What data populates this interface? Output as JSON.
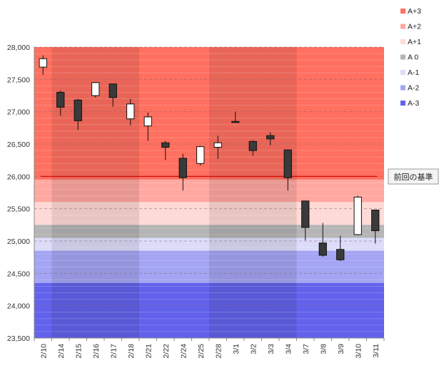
{
  "chart_data": {
    "type": "candlestick",
    "ylim": [
      23500,
      28000
    ],
    "yticks": [
      "23,500",
      "24,000",
      "24,500",
      "25,000",
      "25,500",
      "26,000",
      "26,500",
      "27,000",
      "27,500",
      "28,000"
    ],
    "ytick_values": [
      23500,
      24000,
      24500,
      25000,
      25500,
      26000,
      26500,
      27000,
      27500,
      28000
    ],
    "grid": true,
    "legend_position": "right",
    "categories": [
      "2/10",
      "2/14",
      "2/15",
      "2/16",
      "2/17",
      "2/18",
      "2/21",
      "2/22",
      "2/24",
      "2/25",
      "2/28",
      "3/1",
      "3/2",
      "3/3",
      "3/4",
      "3/7",
      "3/8",
      "3/9",
      "3/10",
      "3/11"
    ],
    "candles": [
      {
        "open": 27690,
        "high": 27870,
        "low": 27570,
        "close": 27820
      },
      {
        "open": 27300,
        "high": 27330,
        "low": 26940,
        "close": 27070
      },
      {
        "open": 27180,
        "high": 27200,
        "low": 26720,
        "close": 26860
      },
      {
        "open": 27250,
        "high": 27460,
        "low": 27220,
        "close": 27450
      },
      {
        "open": 27430,
        "high": 27430,
        "low": 27080,
        "close": 27220
      },
      {
        "open": 26890,
        "high": 27200,
        "low": 26790,
        "close": 27120
      },
      {
        "open": 26780,
        "high": 26990,
        "low": 26550,
        "close": 26920
      },
      {
        "open": 26520,
        "high": 26550,
        "low": 26250,
        "close": 26450
      },
      {
        "open": 26280,
        "high": 26350,
        "low": 25780,
        "close": 25980
      },
      {
        "open": 26200,
        "high": 26470,
        "low": 26170,
        "close": 26460
      },
      {
        "open": 26450,
        "high": 26630,
        "low": 26270,
        "close": 26520
      },
      {
        "open": 26850,
        "high": 27000,
        "low": 26840,
        "close": 26840
      },
      {
        "open": 26540,
        "high": 26560,
        "low": 26320,
        "close": 26400
      },
      {
        "open": 26630,
        "high": 26680,
        "low": 26480,
        "close": 26580
      },
      {
        "open": 26410,
        "high": 26410,
        "low": 25780,
        "close": 25980
      },
      {
        "open": 25620,
        "high": 25620,
        "low": 25010,
        "close": 25210
      },
      {
        "open": 24970,
        "high": 25280,
        "low": 24760,
        "close": 24780
      },
      {
        "open": 24870,
        "high": 25080,
        "low": 24690,
        "close": 24710
      },
      {
        "open": 25100,
        "high": 25700,
        "low": 25090,
        "close": 25680
      },
      {
        "open": 25480,
        "high": 25480,
        "low": 24960,
        "close": 25160
      }
    ],
    "reference_line": {
      "label": "前回の基準",
      "value": 26000,
      "color": "#d00000"
    },
    "bands": [
      {
        "name": "A+3",
        "from": 25950,
        "to": 28000,
        "color": "#ff7060"
      },
      {
        "name": "A+2",
        "from": 25600,
        "to": 25950,
        "color": "#ffa8a0"
      },
      {
        "name": "A+1",
        "from": 25250,
        "to": 25600,
        "color": "#ffd9d5"
      },
      {
        "name": "A 0",
        "from": 25050,
        "to": 25250,
        "color": "#b4b4b4"
      },
      {
        "name": "A-1",
        "from": 24850,
        "to": 25050,
        "color": "#dcdcfa"
      },
      {
        "name": "A-2",
        "from": 24350,
        "to": 24850,
        "color": "#a4a4f4"
      },
      {
        "name": "A-3",
        "from": 23500,
        "to": 24350,
        "color": "#6262ec"
      }
    ],
    "column_shading": [
      {
        "from": "2/14",
        "to": "2/18"
      },
      {
        "from": "2/28",
        "to": "3/4"
      }
    ],
    "up_color": "#ffffff",
    "down_color": "#3a3a3a"
  }
}
